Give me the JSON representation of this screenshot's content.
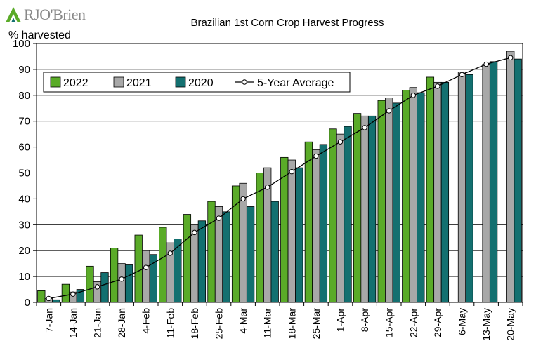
{
  "logo": {
    "text": "RJO'Brien"
  },
  "chart_data": {
    "type": "bar",
    "title": "Brazilian 1st Corn Crop Harvest Progress",
    "ylabel": "% harvested",
    "xlabel": "",
    "ylim": [
      0,
      100
    ],
    "yticks": [
      0,
      10,
      20,
      30,
      40,
      50,
      60,
      70,
      80,
      90,
      100
    ],
    "grid": "horizontal",
    "legend_position": "top-left",
    "categories": [
      "7-Jan",
      "14-Jan",
      "21-Jan",
      "28-Jan",
      "4-Feb",
      "11-Feb",
      "18-Feb",
      "25-Feb",
      "4-Mar",
      "11-Mar",
      "18-Mar",
      "25-Mar",
      "1-Apr",
      "8-Apr",
      "15-Apr",
      "22-Apr",
      "29-Apr",
      "6-May",
      "13-May",
      "20-May"
    ],
    "series": [
      {
        "name": "2022",
        "kind": "bar",
        "color": "#5aab28",
        "values": [
          4.5,
          7,
          14,
          21,
          26,
          29,
          34,
          39,
          45,
          50,
          56,
          62,
          67,
          73,
          78,
          82,
          87,
          null,
          null,
          null
        ]
      },
      {
        "name": "2021",
        "kind": "bar",
        "color": "#a8a8a8",
        "values": [
          1.5,
          4,
          8,
          15,
          20,
          23,
          30,
          37,
          46,
          52,
          55,
          59,
          65,
          72,
          79,
          83,
          85,
          89,
          92,
          97
        ]
      },
      {
        "name": "2020",
        "kind": "bar",
        "color": "#137070",
        "values": [
          1,
          5,
          11.5,
          14.5,
          18.5,
          24.5,
          31.5,
          35,
          37,
          39,
          52,
          61,
          68,
          72,
          77,
          81,
          85,
          88,
          93,
          94
        ]
      },
      {
        "name": "5-Year Average",
        "kind": "line",
        "color": "#000000",
        "values": [
          1.5,
          3.2,
          6,
          9,
          13.5,
          19,
          27,
          32.5,
          40,
          44.5,
          50.5,
          56.5,
          62,
          67.5,
          74,
          80,
          83.5,
          88,
          92,
          94.5
        ]
      }
    ]
  }
}
